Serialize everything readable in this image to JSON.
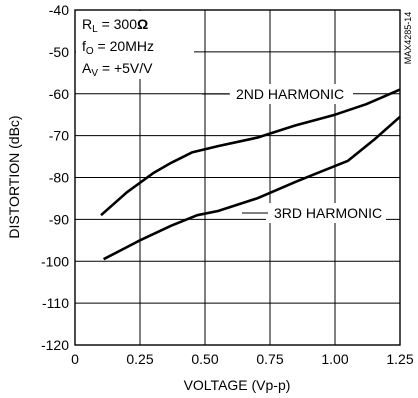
{
  "chart_data": {
    "type": "line",
    "title": "",
    "xlabel": "VOLTAGE (Vp-p)",
    "ylabel": "DISTORTION (dBc)",
    "xlim": [
      0,
      1.25
    ],
    "ylim": [
      -120,
      -40
    ],
    "xticks": [
      0,
      0.25,
      0.5,
      0.75,
      1.0,
      1.25
    ],
    "xtick_labels": [
      "0",
      "0.25",
      "0.50",
      "0.75",
      "1.00",
      "1.25"
    ],
    "yticks": [
      -40,
      -50,
      -60,
      -70,
      -80,
      -90,
      -100,
      -110,
      -120
    ],
    "ytick_labels": [
      "-40",
      "-50",
      "-60",
      "-70",
      "-80",
      "-90",
      "-100",
      "-110",
      "-120"
    ],
    "grid": true,
    "conditions": {
      "rl": {
        "sym": "R",
        "sub": "L",
        "rest": " = 300",
        "unit": "Ω"
      },
      "f0": {
        "sym": "f",
        "sub": "O",
        "rest": " = 20MHz"
      },
      "av": {
        "sym": "A",
        "sub": "V",
        "rest": " = +5V/V"
      }
    },
    "side_id": "MAX4285-14",
    "series": [
      {
        "name": "2ND HARMONIC",
        "x": [
          0.1,
          0.2,
          0.3,
          0.37,
          0.45,
          0.55,
          0.7,
          0.85,
          1.0,
          1.12,
          1.25
        ],
        "y": [
          -89,
          -83.5,
          -79,
          -76.5,
          -74,
          -72.5,
          -70.5,
          -67.5,
          -65,
          -62.5,
          -59
        ]
      },
      {
        "name": "3RD HARMONIC",
        "x": [
          0.11,
          0.25,
          0.37,
          0.47,
          0.55,
          0.7,
          0.85,
          0.95,
          1.05,
          1.15,
          1.25
        ],
        "y": [
          -99.5,
          -95,
          -91.5,
          -89,
          -88,
          -85,
          -81,
          -78.5,
          -76,
          -71,
          -65.5
        ]
      }
    ]
  }
}
